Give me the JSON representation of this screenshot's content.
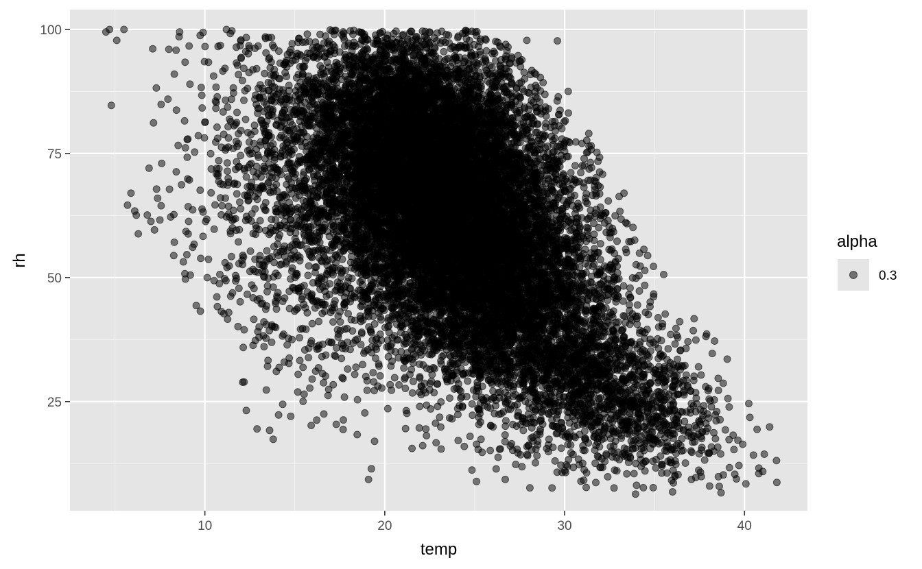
{
  "chart_data": {
    "type": "scatter",
    "xlabel": "temp",
    "ylabel": "rh",
    "xlim": [
      2.5,
      43.5
    ],
    "ylim": [
      3,
      104
    ],
    "x_ticks": [
      10,
      20,
      30,
      40
    ],
    "y_ticks": [
      25,
      50,
      75,
      100
    ],
    "x_minor": [
      5,
      15,
      25,
      35
    ],
    "y_minor": [
      12.5,
      37.5,
      62.5,
      87.5
    ],
    "grid": true,
    "point_color": "#000000",
    "point_alpha": 0.5,
    "legend": {
      "title": "alpha",
      "placement": "right",
      "entries": [
        {
          "label": "0.3"
        }
      ]
    },
    "n_points_shown": 16000,
    "clusters": [
      {
        "cx": 22.5,
        "cy": 72,
        "sx": 3.8,
        "sy": 14,
        "rho": -0.3,
        "weight": 0.62
      },
      {
        "cx": 26,
        "cy": 46,
        "sx": 4.0,
        "sy": 13,
        "rho": -0.4,
        "weight": 0.28
      },
      {
        "cx": 33,
        "cy": 25,
        "sx": 3.0,
        "sy": 8,
        "rho": -0.4,
        "weight": 0.06
      },
      {
        "cx": 14,
        "cy": 60,
        "sx": 2.6,
        "sy": 18,
        "rho": -0.3,
        "weight": 0.04
      }
    ],
    "envelope": [
      [
        4,
        100
      ],
      [
        12,
        100
      ],
      [
        20,
        100
      ],
      [
        26,
        100
      ],
      [
        31,
        82
      ],
      [
        34,
        60
      ],
      [
        42,
        20
      ],
      [
        42,
        6
      ],
      [
        34,
        6
      ],
      [
        26,
        8
      ],
      [
        18,
        12
      ],
      [
        12,
        28
      ],
      [
        8,
        52
      ],
      [
        4,
        62
      ]
    ],
    "outliers": [
      [
        4.5,
        99.5
      ],
      [
        4.7,
        100
      ],
      [
        5.5,
        100
      ],
      [
        5.1,
        97.8
      ],
      [
        4.8,
        84.7
      ],
      [
        7.1,
        96.1
      ],
      [
        7.3,
        88.2
      ],
      [
        7.6,
        73
      ],
      [
        8.0,
        96
      ],
      [
        8.4,
        95.8
      ],
      [
        8.6,
        99.5
      ],
      [
        8.3,
        91
      ],
      [
        8.9,
        93.4
      ],
      [
        9.9,
        99.4
      ],
      [
        9.8,
        88.3
      ],
      [
        5.7,
        64.6
      ],
      [
        6.1,
        63.4
      ],
      [
        6.3,
        58.8
      ],
      [
        6.8,
        62.6
      ],
      [
        7.0,
        61.3
      ],
      [
        7.5,
        61.6
      ],
      [
        8.1,
        62.2
      ],
      [
        8.7,
        68.7
      ],
      [
        7.2,
        59.6
      ],
      [
        8.3,
        57.1
      ],
      [
        9.1,
        61.3
      ],
      [
        9.4,
        56.7
      ],
      [
        9.0,
        54.6
      ],
      [
        9.9,
        63.2
      ],
      [
        41.8,
        8.7
      ],
      [
        41.4,
        19.9
      ],
      [
        41.1,
        14.4
      ],
      [
        40.8,
        11.6
      ],
      [
        40.5,
        14.2
      ],
      [
        40.3,
        21.8
      ],
      [
        40.7,
        19.4
      ],
      [
        39.9,
        16.4
      ],
      [
        38.7,
        6.6
      ],
      [
        38.6,
        7.9
      ],
      [
        19.1,
        9.3
      ],
      [
        25.1,
        8.9
      ],
      [
        26.7,
        9.3
      ],
      [
        29.3,
        7.6
      ],
      [
        31.2,
        7.7
      ],
      [
        36.0,
        6.8
      ],
      [
        37.2,
        41.7
      ],
      [
        36.4,
        41.1
      ],
      [
        37.3,
        37.4
      ],
      [
        34.2,
        52.3
      ],
      [
        33.3,
        67.0
      ],
      [
        33.8,
        60.1
      ],
      [
        29.6,
        97.7
      ],
      [
        27.9,
        97.8
      ],
      [
        30.2,
        87.5
      ],
      [
        11.2,
        100
      ],
      [
        11.5,
        99.7
      ],
      [
        10.2,
        93.4
      ],
      [
        10.0,
        81.3
      ],
      [
        12.1,
        28.9
      ],
      [
        12.3,
        23.2
      ],
      [
        12.9,
        19.5
      ],
      [
        13.8,
        17.4
      ],
      [
        13.6,
        19.2
      ],
      [
        14.1,
        22.3
      ]
    ]
  }
}
